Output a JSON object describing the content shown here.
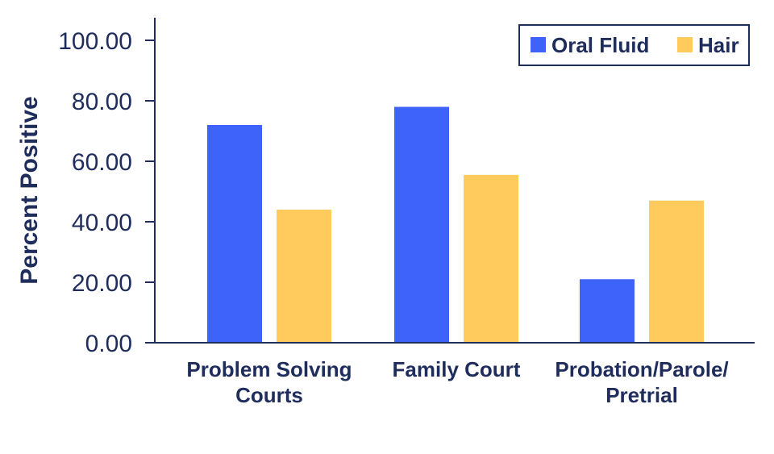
{
  "chart_data": {
    "type": "bar",
    "categories": [
      [
        "Problem Solving",
        "Courts"
      ],
      [
        "Family Court"
      ],
      [
        "Probation/Parole/",
        "Pretrial"
      ]
    ],
    "series": [
      {
        "name": "Oral Fluid",
        "color": "#3d63fb",
        "values": [
          72,
          78,
          21
        ]
      },
      {
        "name": "Hair",
        "color": "#fecb5c",
        "values": [
          44,
          55.5,
          47
        ]
      }
    ],
    "ylabel": "Percent Positive",
    "ylim": [
      0,
      100
    ],
    "yticks": [
      "0.00",
      "20.00",
      "40.00",
      "60.00",
      "80.00",
      "100.00"
    ],
    "grid": false,
    "legend_position": "top-right",
    "axis_color": "#1f2d5c"
  }
}
